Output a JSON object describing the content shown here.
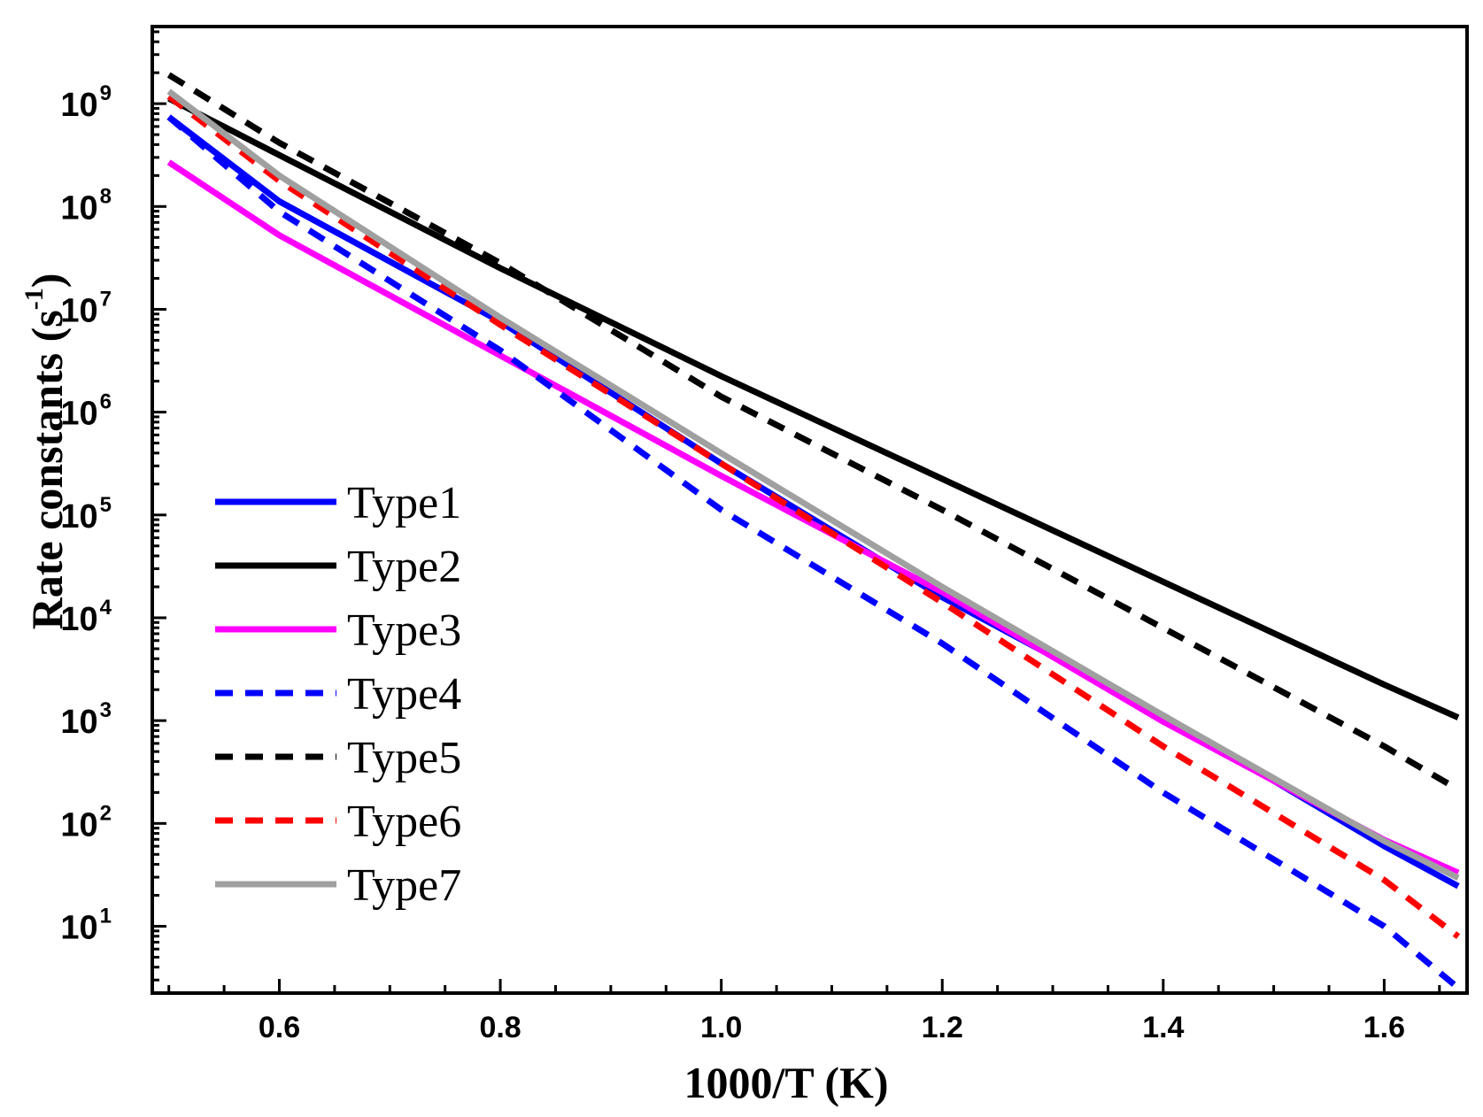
{
  "chart_data": {
    "type": "line",
    "title": "",
    "xlabel": "1000/T (K)",
    "ylabel": "Rate constants (s⁻¹)",
    "ylabel_main": "Rate constants (s",
    "ylabel_sup": "-1",
    "ylabel_close": ")",
    "xlim": [
      0.485,
      1.675
    ],
    "ylim_log10": [
      0.35,
      9.75
    ],
    "yscale": "log",
    "xticks": [
      0.6,
      0.8,
      1.0,
      1.2,
      1.4,
      1.6
    ],
    "xtick_labels": [
      "0.6",
      "0.8",
      "1.0",
      "1.2",
      "1.4",
      "1.6"
    ],
    "yticks_exponents": [
      1,
      2,
      3,
      4,
      5,
      6,
      7,
      8,
      9
    ],
    "ytick_base": "10",
    "ytick_exponent_labels": [
      "1",
      "2",
      "3",
      "4",
      "5",
      "6",
      "7",
      "8",
      "9"
    ],
    "grid": false,
    "legend_position": "left-bottom",
    "x": [
      0.5,
      0.6,
      0.8,
      1.0,
      1.2,
      1.4,
      1.6,
      1.667
    ],
    "series": [
      {
        "name": "Type1",
        "color": "#0000ff",
        "style": "solid",
        "log10_values": [
          8.87,
          8.05,
          6.88,
          5.5,
          4.2,
          3.05,
          1.78,
          1.39
        ]
      },
      {
        "name": "Type2",
        "color": "#000000",
        "style": "solid",
        "log10_values": [
          9.05,
          8.5,
          7.4,
          6.35,
          5.35,
          4.35,
          3.35,
          3.03
        ]
      },
      {
        "name": "Type3",
        "color": "#ff00ff",
        "style": "solid",
        "log10_values": [
          8.43,
          7.72,
          6.55,
          5.38,
          4.25,
          2.99,
          1.84,
          1.52
        ]
      },
      {
        "name": "Type4",
        "color": "#0000ff",
        "style": "dashed",
        "log10_values": [
          8.87,
          7.95,
          6.6,
          5.05,
          3.75,
          2.3,
          1.0,
          0.4
        ]
      },
      {
        "name": "Type5",
        "color": "#000000",
        "style": "dashed",
        "log10_values": [
          9.28,
          8.62,
          7.45,
          6.15,
          5.05,
          3.9,
          2.75,
          2.33
        ]
      },
      {
        "name": "Type6",
        "color": "#ff0000",
        "style": "dashed",
        "log10_values": [
          9.07,
          8.25,
          6.85,
          5.5,
          4.15,
          2.75,
          1.45,
          0.9
        ]
      },
      {
        "name": "Type7",
        "color": "#a0a0a0",
        "style": "solid",
        "log10_values": [
          9.12,
          8.3,
          6.92,
          5.6,
          4.3,
          3.05,
          1.83,
          1.47
        ]
      }
    ]
  }
}
